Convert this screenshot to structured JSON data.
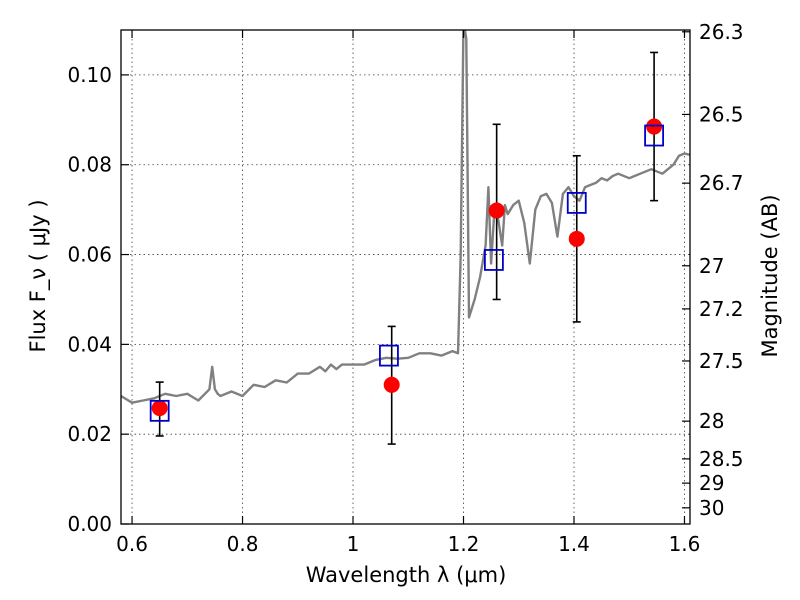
{
  "chart_data": {
    "type": "scatter",
    "title": "",
    "xlabel": "Wavelength  λ (μm)",
    "ylabel": "Flux  F_ν  ( μJy )",
    "ylabel_right": "Magnitude (AB)",
    "xlim": [
      0.58,
      1.61
    ],
    "ylim": [
      0.0,
      0.11
    ],
    "grid": true,
    "x_ticks": [
      0.6,
      0.8,
      1.0,
      1.2,
      1.4,
      1.6
    ],
    "x_tick_labels": [
      "0.6",
      "0.8",
      "1",
      "1.2",
      "1.4",
      "1.6"
    ],
    "y_ticks": [
      0.0,
      0.02,
      0.04,
      0.06,
      0.08,
      0.1
    ],
    "y_tick_labels": [
      "0.00",
      "0.02",
      "0.04",
      "0.06",
      "0.08",
      "0.10"
    ],
    "right_axis": {
      "ticks": [
        "26.3",
        "26.5",
        "26.7",
        "27",
        "27.2",
        "27.5",
        "28",
        "28.5",
        "29",
        "30"
      ],
      "flux_positions": [
        0.1096,
        0.0912,
        0.0759,
        0.0575,
        0.0479,
        0.0363,
        0.0229,
        0.0145,
        0.0091,
        0.0036
      ]
    },
    "series": [
      {
        "role": "model_spectrum",
        "style": "line",
        "color": "#808080",
        "x": [
          0.58,
          0.6,
          0.62,
          0.64,
          0.66,
          0.68,
          0.7,
          0.72,
          0.74,
          0.745,
          0.75,
          0.755,
          0.76,
          0.78,
          0.8,
          0.82,
          0.84,
          0.86,
          0.88,
          0.9,
          0.92,
          0.94,
          0.95,
          0.96,
          0.97,
          0.98,
          1.0,
          1.02,
          1.04,
          1.06,
          1.08,
          1.1,
          1.12,
          1.14,
          1.16,
          1.18,
          1.19,
          1.195,
          1.2,
          1.205,
          1.21,
          1.22,
          1.23,
          1.24,
          1.245,
          1.25,
          1.255,
          1.26,
          1.27,
          1.275,
          1.28,
          1.29,
          1.3,
          1.31,
          1.32,
          1.33,
          1.34,
          1.35,
          1.36,
          1.37,
          1.38,
          1.39,
          1.4,
          1.41,
          1.42,
          1.43,
          1.44,
          1.45,
          1.46,
          1.47,
          1.48,
          1.5,
          1.52,
          1.54,
          1.56,
          1.58,
          1.59,
          1.6,
          1.61
        ],
        "y": [
          0.0285,
          0.027,
          0.0275,
          0.028,
          0.029,
          0.0285,
          0.029,
          0.0275,
          0.03,
          0.035,
          0.03,
          0.029,
          0.0285,
          0.0295,
          0.0285,
          0.031,
          0.0305,
          0.032,
          0.0315,
          0.0335,
          0.0335,
          0.035,
          0.034,
          0.0355,
          0.0345,
          0.0355,
          0.0355,
          0.0355,
          0.0365,
          0.037,
          0.0368,
          0.037,
          0.038,
          0.038,
          0.0375,
          0.0385,
          0.038,
          0.06,
          0.112,
          0.108,
          0.046,
          0.05,
          0.055,
          0.062,
          0.075,
          0.058,
          0.068,
          0.07,
          0.062,
          0.071,
          0.069,
          0.071,
          0.072,
          0.067,
          0.058,
          0.07,
          0.073,
          0.0735,
          0.0715,
          0.064,
          0.0735,
          0.075,
          0.073,
          0.072,
          0.075,
          0.0755,
          0.076,
          0.077,
          0.0765,
          0.0775,
          0.078,
          0.077,
          0.078,
          0.079,
          0.078,
          0.08,
          0.082,
          0.0825,
          0.0822
        ]
      },
      {
        "role": "observed",
        "style": "points_with_errorbars",
        "color": "#ff0000",
        "x": [
          0.65,
          1.07,
          1.26,
          1.405,
          1.545
        ],
        "y": [
          0.0258,
          0.031,
          0.0698,
          0.0635,
          0.0885
        ],
        "y_err_low": [
          0.0062,
          0.0132,
          0.0198,
          0.0185,
          0.0165
        ],
        "y_err_high": [
          0.0058,
          0.013,
          0.0192,
          0.0185,
          0.0165
        ]
      },
      {
        "role": "model_photometry",
        "style": "open_squares",
        "color": "#0000cc",
        "x": [
          0.65,
          1.065,
          1.255,
          1.405,
          1.545
        ],
        "y": [
          0.0252,
          0.0375,
          0.0588,
          0.0715,
          0.0865
        ]
      }
    ]
  }
}
